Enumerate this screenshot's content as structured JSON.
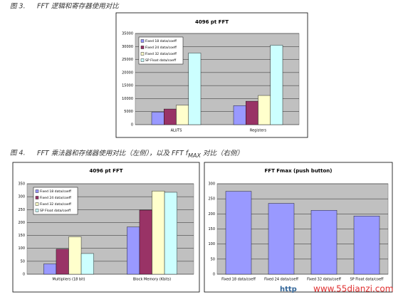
{
  "captions": [
    {
      "label": "图 3.",
      "text": "FFT 逻辑和寄存器使用对比"
    },
    {
      "label": "图 4.",
      "text": "FFT 乘法器和存储器使用对比（左侧），以及 FFT f",
      "sub": "MAX",
      "tail": " 对比（右侧）"
    }
  ],
  "watermark": {
    "prefix": "http",
    "site": "www.55dianzi.com"
  },
  "chart_data": [
    {
      "type": "bar",
      "title": "4096 pt FFT",
      "categories": [
        "ALUTS",
        "Registers"
      ],
      "series": [
        {
          "name": "Fixed 18 data/coeff",
          "color": "#9999ff",
          "values": [
            4800,
            7300
          ]
        },
        {
          "name": "Fixed 24 data/coeff",
          "color": "#993366",
          "values": [
            6000,
            9000
          ]
        },
        {
          "name": "Fixed 32 data/coeff",
          "color": "#ffffcc",
          "values": [
            7500,
            11200
          ]
        },
        {
          "name": "SP Float data/coeff",
          "color": "#ccffff",
          "values": [
            27500,
            30500
          ]
        }
      ],
      "ylim": [
        0,
        35000
      ],
      "yticks": [
        0,
        5000,
        10000,
        15000,
        20000,
        25000,
        30000,
        35000
      ],
      "grid": true,
      "legend": "upper left"
    },
    {
      "type": "bar",
      "title": "4096 pt FFT",
      "categories": [
        "Multipliers (18 bit)",
        "Block Memory (Kbits)"
      ],
      "series": [
        {
          "name": "Fixed 18 data/coeff",
          "color": "#9999ff",
          "values": [
            40,
            183
          ]
        },
        {
          "name": "Fixed 24 data/coeff",
          "color": "#993366",
          "values": [
            97,
            248
          ]
        },
        {
          "name": "Fixed 32 data/coeff",
          "color": "#ffffcc",
          "values": [
            145,
            322
          ]
        },
        {
          "name": "SP Float data/coeff",
          "color": "#ccffff",
          "values": [
            80,
            317
          ]
        }
      ],
      "ylim": [
        0,
        350
      ],
      "yticks": [
        0,
        50,
        100,
        150,
        200,
        250,
        300,
        350
      ],
      "grid": true,
      "legend": "upper left"
    },
    {
      "type": "bar",
      "title": "FFT Fmax (push button)",
      "categories": [
        "Fixed 18 data/coeff",
        "Fixed 24 data/coeff",
        "Fixed 32 data/coeff",
        "SP Float data/coeff"
      ],
      "values": [
        275,
        235,
        212,
        193
      ],
      "color": "#9999ff",
      "ylim": [
        0,
        300
      ],
      "yticks": [
        0,
        50,
        100,
        150,
        200,
        250,
        300
      ],
      "grid": true
    }
  ]
}
